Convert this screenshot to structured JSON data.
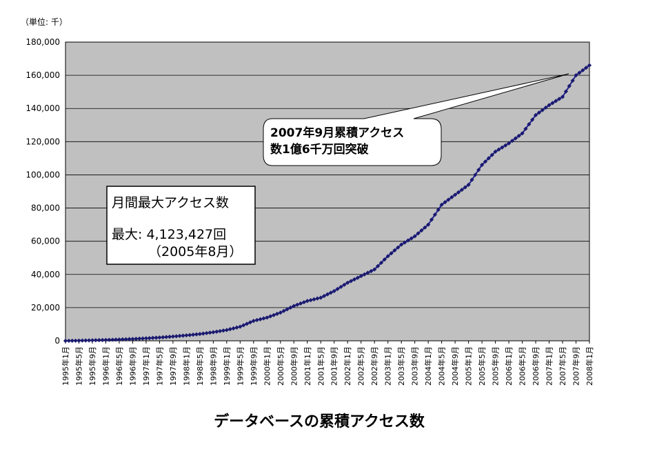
{
  "chart_data": {
    "type": "line",
    "title": "データベースの累積アクセス数",
    "unit_label": "（単位: 千）",
    "ylim": [
      0,
      180000
    ],
    "y_ticks": [
      "0",
      "20,000",
      "40,000",
      "60,000",
      "80,000",
      "100,000",
      "120,000",
      "140,000",
      "160,000",
      "180,000"
    ],
    "x_tick_labels": [
      "1995年1月",
      "1995年5月",
      "1995年9月",
      "1996年1月",
      "1996年5月",
      "1996年9月",
      "1997年1月",
      "1997年5月",
      "1997年9月",
      "1998年1月",
      "1998年5月",
      "1998年9月",
      "1999年1月",
      "1999年5月",
      "1999年9月",
      "2000年1月",
      "2000年5月",
      "2000年9月",
      "2001年1月",
      "2001年5月",
      "2001年9月",
      "2002年1月",
      "2002年5月",
      "2002年9月",
      "2003年1月",
      "2003年5月",
      "2003年9月",
      "2004年1月",
      "2004年5月",
      "2004年9月",
      "2005年1月",
      "2005年5月",
      "2005年9月",
      "2006年1月",
      "2006年5月",
      "2006年9月",
      "2007年1月",
      "2007年5月",
      "2007年9月",
      "2008年1月"
    ],
    "grid": true,
    "background": "#c0c0c0",
    "line_color": "#1f1f8f",
    "marker_color": "#1a1a70",
    "series": [
      {
        "values": [
          0,
          100,
          300,
          500,
          800,
          1100,
          1500,
          2000,
          2600,
          3300,
          4100,
          5200,
          6500,
          8500,
          12000,
          14000,
          17000,
          21000,
          24000,
          26000,
          30000,
          35000,
          39000,
          43000,
          51000,
          58000,
          63000,
          70000,
          82000,
          88000,
          94000,
          106000,
          114000,
          119000,
          125000,
          136000,
          142000,
          147000,
          160000,
          166000
        ]
      }
    ],
    "annotations": {
      "box": {
        "line1": "月間最大アクセス数",
        "line2": "最大: 4,123,427回",
        "line3": "（2005年8月）"
      },
      "callout": {
        "line1": "2007年9月累積アクセス",
        "line2": "数1億6千万回突破"
      }
    }
  }
}
